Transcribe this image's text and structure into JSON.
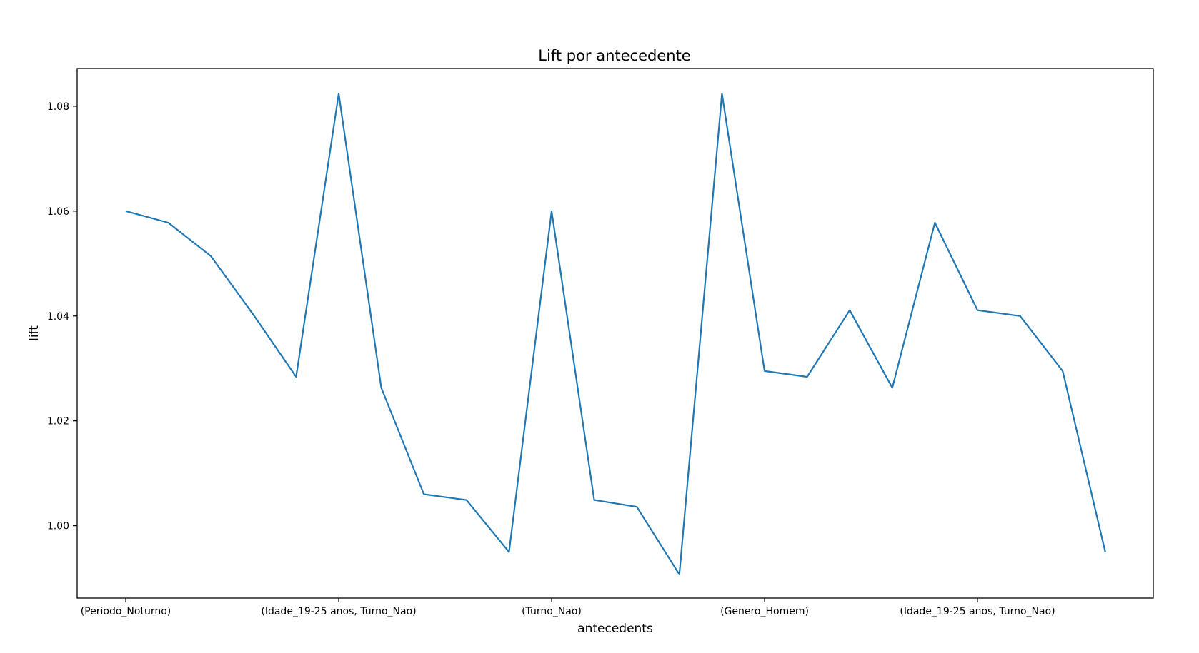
{
  "chart_data": {
    "type": "line",
    "title": "Lift por antecedente",
    "xlabel": "antecedents",
    "ylabel": "lift",
    "ylim": [
      0.9862,
      1.0872
    ],
    "yticks": [
      1.0,
      1.02,
      1.04,
      1.06,
      1.08
    ],
    "ytick_labels": [
      "1.00",
      "1.02",
      "1.04",
      "1.06",
      "1.08"
    ],
    "xticks": [
      0,
      5,
      10,
      15,
      20
    ],
    "xtick_labels": [
      "(Periodo_Noturno)",
      "(Idade_19-25 anos, Turno_Nao)",
      "(Turno_Nao)",
      "(Genero_Homem)",
      "(Idade_19-25 anos, Turno_Nao)"
    ],
    "x": [
      0,
      1,
      2,
      3,
      4,
      5,
      6,
      7,
      8,
      9,
      10,
      11,
      12,
      13,
      14,
      15,
      16,
      17,
      18,
      19,
      20,
      21,
      22,
      23
    ],
    "series": [
      {
        "color": "#1f77b4",
        "values": [
          1.06,
          1.0578,
          1.0514,
          1.0402,
          1.0284,
          1.0824,
          1.0263,
          1.006,
          1.0049,
          0.995,
          1.06,
          1.0049,
          1.0036,
          0.9907,
          1.0824,
          1.0295,
          1.0284,
          1.0411,
          1.0263,
          1.0578,
          1.0411,
          1.04,
          1.0295,
          0.995
        ]
      }
    ],
    "grid": false,
    "legend": "none"
  }
}
